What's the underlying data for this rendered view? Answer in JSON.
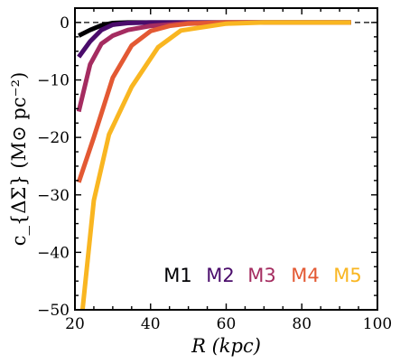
{
  "chart_data": {
    "type": "line",
    "xlabel": "R (kpc)",
    "ylabel": "c_{ΔΣ} (M⊙ pc⁻²)",
    "xlim": [
      20,
      100
    ],
    "ylim": [
      -50,
      2.5
    ],
    "xticks": [
      20,
      40,
      60,
      80,
      100
    ],
    "yticks": [
      0,
      -10,
      -20,
      -30,
      -40,
      -50
    ],
    "xtick_labels": [
      "20",
      "40",
      "60",
      "80",
      "100"
    ],
    "ytick_labels": [
      "0",
      "−10",
      "−20",
      "−30",
      "−40",
      "−50"
    ],
    "reference_line": {
      "y": 0,
      "style": "dashed",
      "color": "#000000"
    },
    "legend_placement": "bottom-right",
    "series": [
      {
        "name": "M1",
        "color": "#000004",
        "x": [
          21,
          24,
          27,
          30,
          34,
          40,
          50,
          60,
          70,
          80,
          93
        ],
        "y": [
          -2.3,
          -1.3,
          -0.5,
          -0.1,
          0,
          0,
          0,
          0,
          0,
          0,
          0
        ]
      },
      {
        "name": "M2",
        "color": "#4a0c6b",
        "x": [
          21,
          24,
          27,
          30,
          34,
          40,
          50,
          60,
          70,
          80,
          93
        ],
        "y": [
          -6.0,
          -3.3,
          -1.3,
          -0.4,
          -0.1,
          0,
          0,
          0,
          0,
          0,
          0
        ]
      },
      {
        "name": "M3",
        "color": "#a52c60",
        "x": [
          21,
          24,
          27,
          30,
          34,
          40,
          50,
          60,
          70,
          80,
          93
        ],
        "y": [
          -15.5,
          -7.3,
          -3.7,
          -2.3,
          -1.3,
          -0.6,
          -0.1,
          0,
          0,
          0,
          0
        ]
      },
      {
        "name": "M4",
        "color": "#e35933",
        "x": [
          21,
          25,
          30,
          35,
          40,
          45,
          50,
          60,
          70,
          80,
          93
        ],
        "y": [
          -27.8,
          -20.0,
          -9.6,
          -4.0,
          -1.5,
          -0.6,
          -0.2,
          0,
          0,
          0,
          0
        ]
      },
      {
        "name": "M5",
        "color": "#f9b621",
        "x": [
          22,
          25,
          29,
          35,
          42,
          48,
          60,
          70,
          80,
          93
        ],
        "y": [
          -50,
          -31.0,
          -19.5,
          -11.2,
          -4.3,
          -1.4,
          -0.2,
          0,
          0,
          0
        ]
      }
    ]
  }
}
